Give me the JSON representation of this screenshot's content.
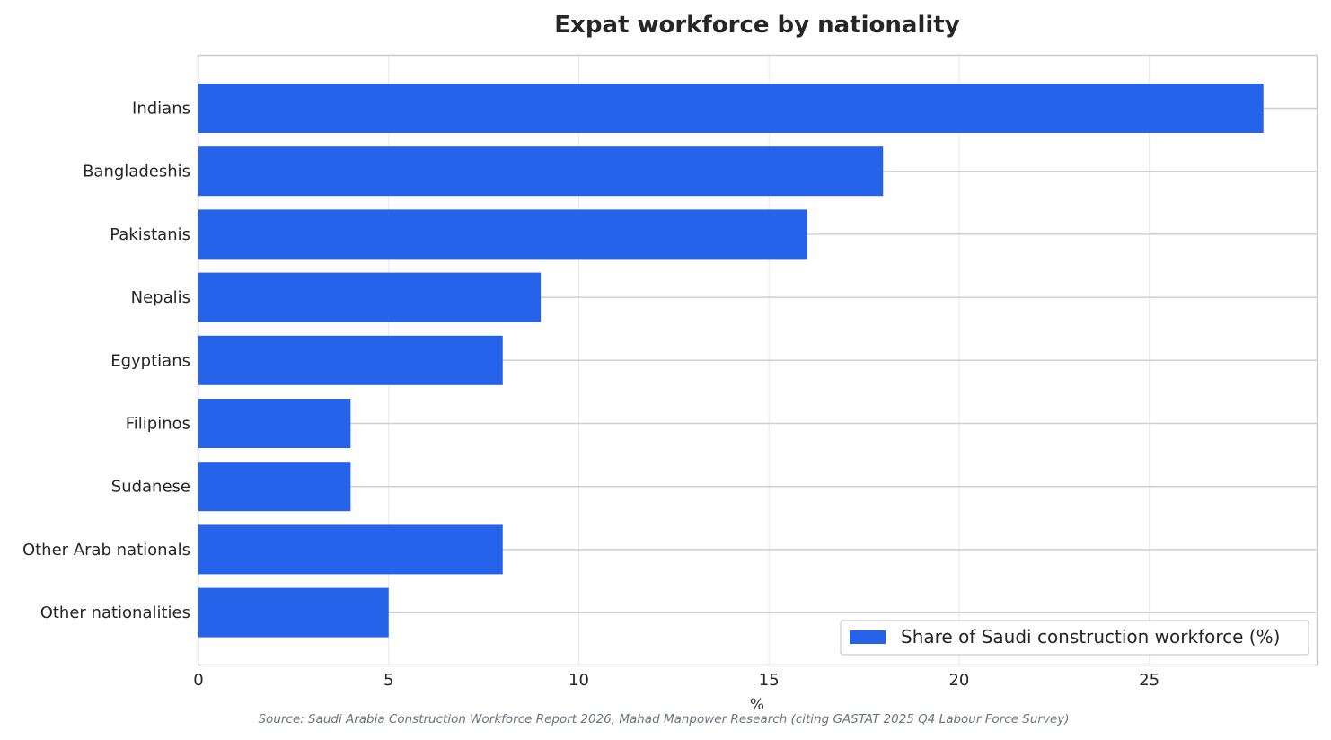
{
  "chart_data": {
    "type": "bar",
    "orientation": "horizontal",
    "title": "Expat workforce by nationality",
    "xlabel": "%",
    "ylabel": "",
    "categories": [
      "Indians",
      "Bangladeshis",
      "Pakistanis",
      "Nepalis",
      "Egyptians",
      "Filipinos",
      "Sudanese",
      "Other Arab nationals",
      "Other nationalities"
    ],
    "series": [
      {
        "name": "Share of Saudi construction workforce (%)",
        "values": [
          28,
          18,
          16,
          9,
          8,
          4,
          4,
          8,
          5
        ],
        "color": "#2563eb"
      }
    ],
    "xlim": [
      0,
      29.4
    ],
    "xticks": [
      0,
      5,
      10,
      15,
      20,
      25
    ],
    "grid": true,
    "legend_position": "bottom-right",
    "source": "Source: Saudi Arabia Construction Workforce Report 2026, Mahad Manpower Research (citing GASTAT 2025 Q4 Labour Force Survey)"
  }
}
